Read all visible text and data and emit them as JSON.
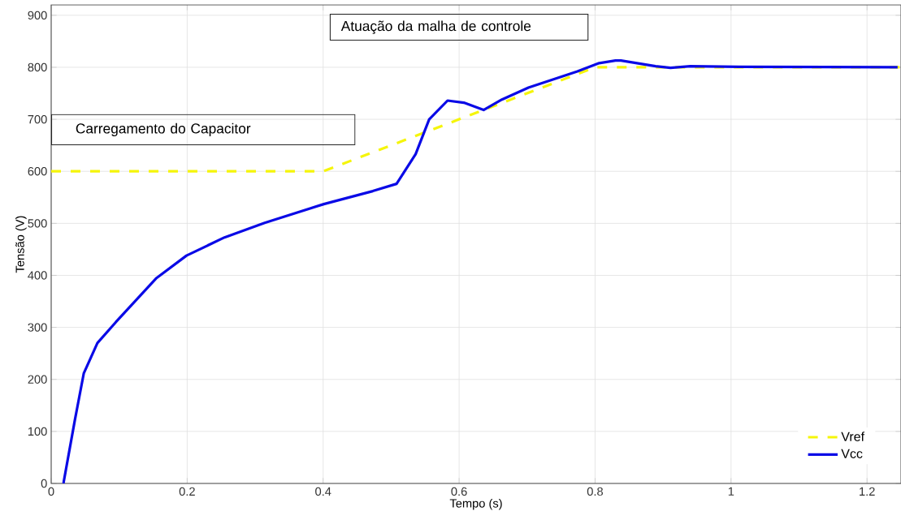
{
  "chart_data": {
    "type": "line",
    "xlabel": "Tempo (s)",
    "ylabel": "Tensão (V)",
    "xlim": [
      0,
      1.25
    ],
    "ylim": [
      0,
      920
    ],
    "xticks": [
      0,
      0.2,
      0.4,
      0.6,
      0.8,
      1,
      1.2
    ],
    "yticks": [
      0,
      100,
      200,
      300,
      400,
      500,
      600,
      700,
      800,
      900
    ],
    "grid": true,
    "legend": "bottom right",
    "annotations": [
      "Carregamento do Capacitor",
      "Atuação da malha de controle"
    ],
    "series": [
      {
        "name": "Vref",
        "color": "#f5f50a",
        "line_style": "dashed",
        "x": [
          0,
          0.4,
          0.8,
          1.25
        ],
        "values": [
          600,
          600,
          800,
          800
        ]
      },
      {
        "name": "Vcc",
        "color": "#0a0ae6",
        "line_style": "solid",
        "x": [
          0.018,
          0.035,
          0.048,
          0.068,
          0.095,
          0.155,
          0.199,
          0.255,
          0.314,
          0.401,
          0.473,
          0.508,
          0.536,
          0.556,
          0.583,
          0.607,
          0.636,
          0.663,
          0.702,
          0.774,
          0.806,
          0.83,
          0.838,
          0.889,
          0.911,
          0.94,
          1.012,
          1.245
        ],
        "values": [
          0,
          123,
          212,
          270,
          310,
          395,
          438,
          473,
          501,
          537,
          562,
          576,
          633,
          700,
          736,
          732,
          718,
          738,
          761,
          792,
          808,
          813,
          813,
          802,
          799,
          802,
          801,
          800
        ]
      }
    ]
  }
}
